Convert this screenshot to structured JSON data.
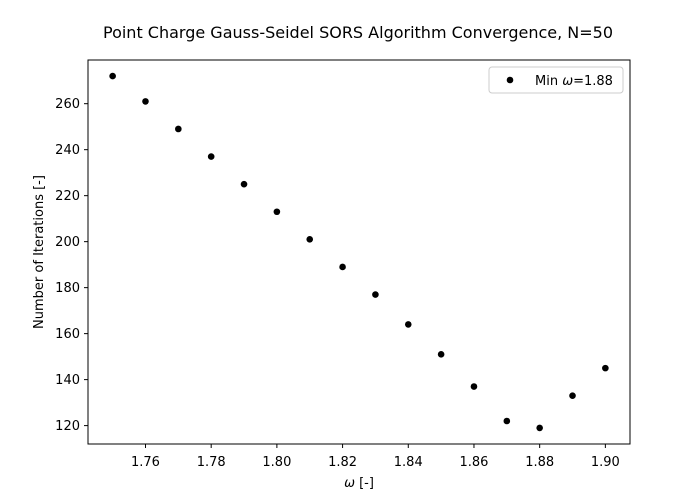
{
  "chart_data": {
    "type": "scatter",
    "title": "Point Charge Gauss-Seidel SORS Algorithm Convergence, N=50",
    "xlabel_symbol": "ω",
    "xlabel_unit": " [-]",
    "ylabel": "Number of Iterations [-]",
    "xlim": [
      1.7425,
      1.9075
    ],
    "ylim": [
      112,
      279
    ],
    "xticks": [
      1.76,
      1.78,
      1.8,
      1.82,
      1.84,
      1.86,
      1.88,
      1.9
    ],
    "xtick_labels": [
      "1.76",
      "1.78",
      "1.80",
      "1.82",
      "1.84",
      "1.86",
      "1.88",
      "1.90"
    ],
    "yticks": [
      120,
      140,
      160,
      180,
      200,
      220,
      240,
      260
    ],
    "ytick_labels": [
      "120",
      "140",
      "160",
      "180",
      "200",
      "220",
      "240",
      "260"
    ],
    "grid": false,
    "legend_position": "upper-right",
    "series": [
      {
        "name_prefix": "Min ",
        "name_symbol": "ω",
        "name_suffix": "=1.88",
        "color": "#000000",
        "x": [
          1.75,
          1.76,
          1.77,
          1.78,
          1.79,
          1.8,
          1.81,
          1.82,
          1.83,
          1.84,
          1.85,
          1.86,
          1.87,
          1.88,
          1.89,
          1.9
        ],
        "y": [
          272,
          261,
          249,
          237,
          225,
          213,
          201,
          189,
          177,
          164,
          151,
          137,
          122,
          119,
          133,
          145
        ]
      }
    ]
  }
}
